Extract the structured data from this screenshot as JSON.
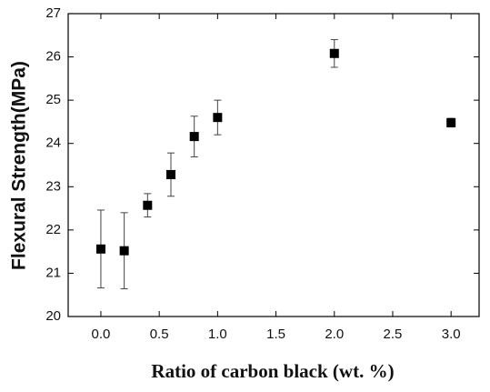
{
  "chart_data": {
    "type": "scatter",
    "xlabel": "Ratio of carbon black (wt. %)",
    "ylabel": "Flexural Strength(MPa)",
    "x": [
      0.0,
      0.2,
      0.4,
      0.6,
      0.8,
      1.0,
      2.0,
      3.0
    ],
    "values": [
      21.56,
      21.52,
      22.57,
      23.28,
      24.16,
      24.6,
      26.08,
      24.48
    ],
    "errors": [
      0.9,
      0.88,
      0.27,
      0.5,
      0.47,
      0.4,
      0.32,
      0.1
    ],
    "color": "#000000",
    "xlim": [
      -0.28,
      3.24
    ],
    "ylim": [
      20,
      27
    ],
    "xticks": [
      {
        "value": 0,
        "label": "0.0"
      },
      {
        "value": 0.5,
        "label": "0.5"
      },
      {
        "value": 1,
        "label": "1.0"
      },
      {
        "value": 1.5,
        "label": "1.5"
      },
      {
        "value": 2,
        "label": "2.0"
      },
      {
        "value": 2.5,
        "label": "2.5"
      },
      {
        "value": 3,
        "label": "3.0"
      }
    ],
    "yticks": [
      20,
      21,
      22,
      23,
      24,
      25,
      26,
      27
    ]
  }
}
